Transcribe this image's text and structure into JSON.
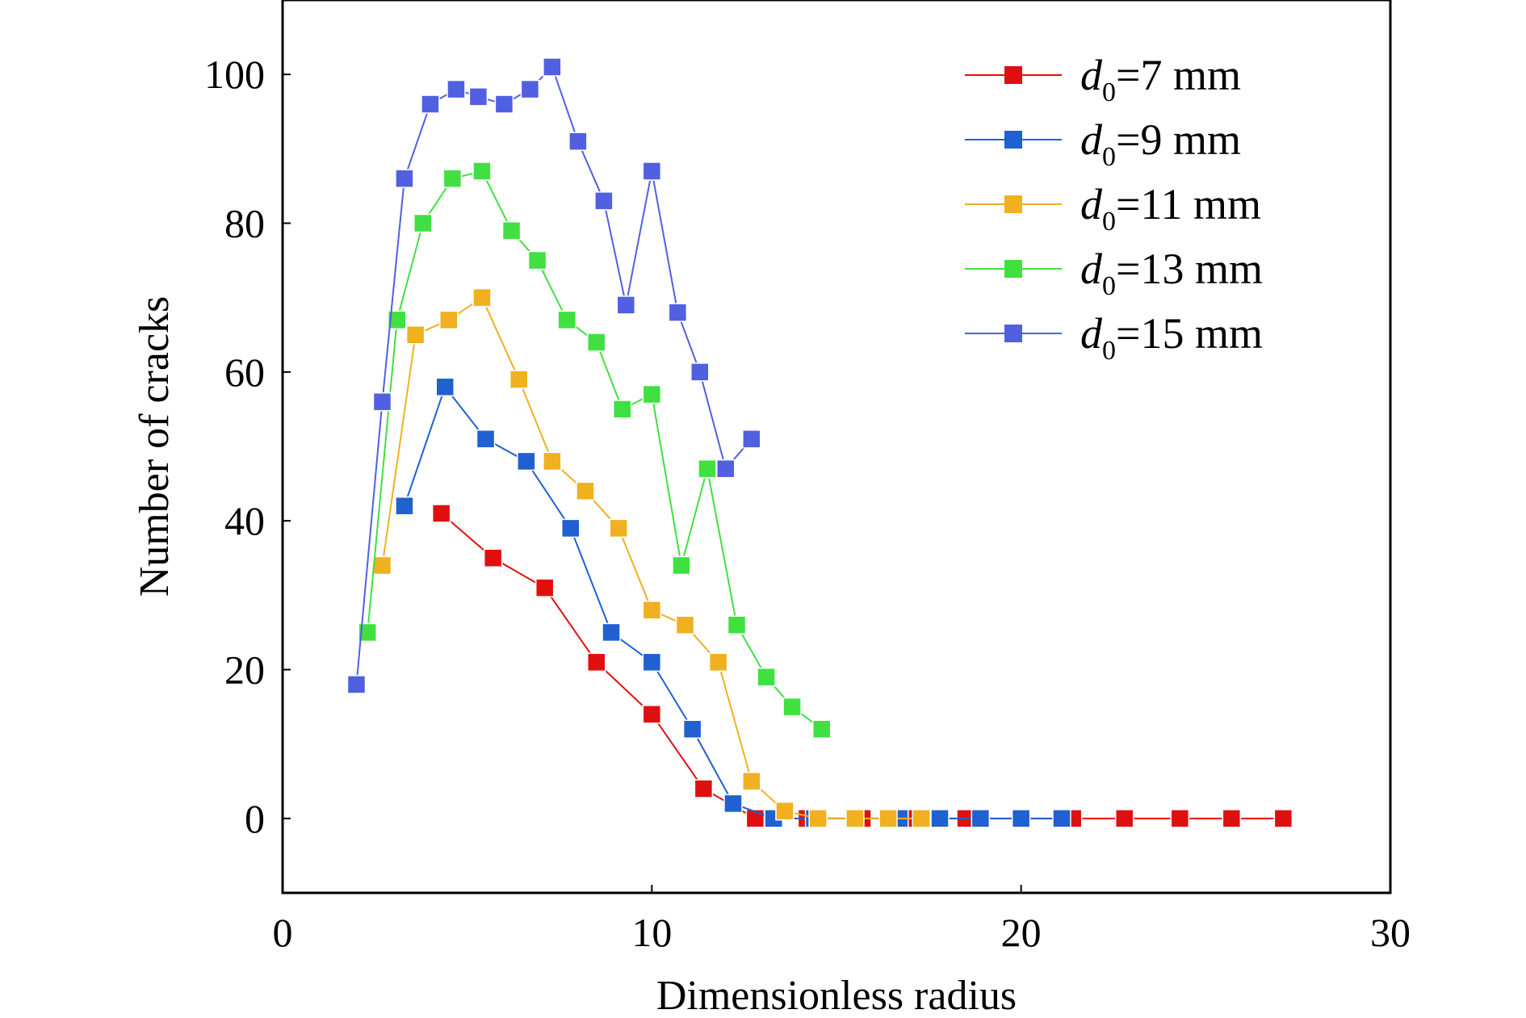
{
  "chart_data": {
    "type": "line",
    "title": "",
    "xlabel": "Dimensionless radius",
    "ylabel": "Number of cracks",
    "xlim": [
      0,
      30
    ],
    "ylim": [
      -10,
      110
    ],
    "xticks": [
      "0",
      "10",
      "20",
      "30"
    ],
    "yticks": [
      "0",
      "20",
      "40",
      "60",
      "80",
      "100"
    ],
    "grid": false,
    "legend_position": "top-right",
    "marker": "square",
    "series": [
      {
        "name": "d0=7 mm",
        "label_main": "d",
        "label_sub": "0",
        "label_rest": "=7 mm",
        "color": "#e01010",
        "x": [
          4.3,
          5.7,
          7.1,
          8.5,
          10.0,
          11.4,
          12.8,
          14.2,
          15.7,
          17.1,
          18.5,
          20.0,
          21.4,
          22.8,
          24.3,
          25.7,
          27.1
        ],
        "y": [
          41,
          35,
          31,
          21,
          14,
          4,
          0,
          0,
          0,
          0,
          0,
          0,
          0,
          0,
          0,
          0,
          0
        ]
      },
      {
        "name": "d0=9 mm",
        "label_main": "d",
        "label_sub": "0",
        "label_rest": "=9 mm",
        "color": "#2060d0",
        "x": [
          3.3,
          4.4,
          5.5,
          6.6,
          7.8,
          8.9,
          10.0,
          11.1,
          12.2,
          13.3,
          14.4,
          15.5,
          16.7,
          17.8,
          18.9,
          20.0,
          21.1
        ],
        "y": [
          42,
          58,
          51,
          48,
          39,
          25,
          21,
          12,
          2,
          0,
          0,
          0,
          0,
          0,
          0,
          0,
          0
        ]
      },
      {
        "name": "d0=11 mm",
        "label_main": "d",
        "label_sub": "0",
        "label_rest": "=11 mm",
        "color": "#f0b020",
        "x": [
          2.7,
          3.6,
          4.5,
          5.4,
          6.4,
          7.3,
          8.2,
          9.1,
          10.0,
          10.9,
          11.8,
          12.7,
          13.6,
          14.5,
          15.5,
          16.4,
          17.3
        ],
        "y": [
          34,
          65,
          67,
          70,
          59,
          48,
          44,
          39,
          28,
          26,
          21,
          5,
          1,
          0,
          0,
          0,
          0
        ]
      },
      {
        "name": "d0=13 mm",
        "label_main": "d",
        "label_sub": "0",
        "label_rest": "=13 mm",
        "color": "#40e040",
        "x": [
          2.3,
          3.1,
          3.8,
          4.6,
          5.4,
          6.2,
          6.9,
          7.7,
          8.5,
          9.2,
          10.0,
          10.8,
          11.5,
          12.3,
          13.1,
          13.8,
          14.6
        ],
        "y": [
          25,
          67,
          80,
          86,
          87,
          79,
          75,
          67,
          64,
          55,
          57,
          34,
          47,
          26,
          19,
          15,
          12
        ]
      },
      {
        "name": "d0=15 mm",
        "label_main": "d",
        "label_sub": "0",
        "label_rest": "=15 mm",
        "color": "#5060e0",
        "x": [
          2.0,
          2.7,
          3.3,
          4.0,
          4.7,
          5.3,
          6.0,
          6.7,
          7.3,
          8.0,
          8.7,
          9.3,
          10.0,
          10.7,
          11.3,
          12.0,
          12.7
        ],
        "y": [
          18,
          56,
          86,
          96,
          98,
          97,
          96,
          98,
          101,
          91,
          83,
          69,
          87,
          68,
          60,
          47,
          51
        ]
      }
    ]
  }
}
